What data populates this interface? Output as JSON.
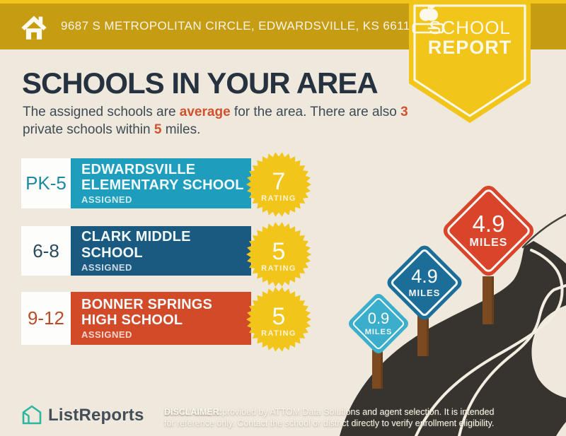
{
  "header": {
    "address": "9687 S METROPOLITAN CIRCLE, EDWARDSVILLE, KS 66111"
  },
  "badge": {
    "line1": "SCHOOL",
    "line2": "REPORT"
  },
  "title": "SCHOOLS IN YOUR AREA",
  "subtitle": {
    "pre": "The assigned schools are ",
    "highlight1": "average",
    "mid1": " for the area. There are also ",
    "highlight2": "3",
    "mid2": "private schools within ",
    "highlight3": "5",
    "post": " miles."
  },
  "schools": [
    {
      "grades": "PK-5",
      "name": "EDWARDSVILLE ELEMENTARY SCHOOL",
      "status": "ASSIGNED",
      "rating": "7",
      "rating_label": "RATING",
      "bar_color": "#1E9EBC",
      "grade_color": "#1F89A3"
    },
    {
      "grades": "6-8",
      "name": "CLARK MIDDLE SCHOOL",
      "status": "ASSIGNED",
      "rating": "5",
      "rating_label": "RATING",
      "bar_color": "#1A5A80",
      "grade_color": "#2A4A5C"
    },
    {
      "grades": "9-12",
      "name": "BONNER SPRINGS HIGH SCHOOL",
      "status": "ASSIGNED",
      "rating": "5",
      "rating_label": "RATING",
      "bar_color": "#D24A27",
      "grade_color": "#BA4A28"
    }
  ],
  "signs": [
    {
      "distance": "0.9",
      "unit": "MILES",
      "color": "#3BAECB"
    },
    {
      "distance": "4.9",
      "unit": "MILES",
      "color": "#1C6E98"
    },
    {
      "distance": "4.9",
      "unit": "MILES",
      "color": "#D9452B"
    }
  ],
  "footer": {
    "brand": "ListReports",
    "disclaimer_label": "DISCLAIMER:",
    "disclaimer_rest1": " School data is provided by ATTOM Data Solutions and agent selection. It is intended",
    "disclaimer_line2": "for reference only. Contact the school or district directly to verify enrollment eligibility."
  },
  "colors": {
    "background": "#EFE8DC",
    "header_gold": "#C69C12",
    "accent_yellow": "#F2C51B",
    "title_dark": "#26323F",
    "highlight_orange": "#D2512D",
    "road_dark": "#37342F",
    "road_line": "#F3EDE2",
    "post_brown": "#7B4A20",
    "logo_teal": "#2CB5A2"
  }
}
